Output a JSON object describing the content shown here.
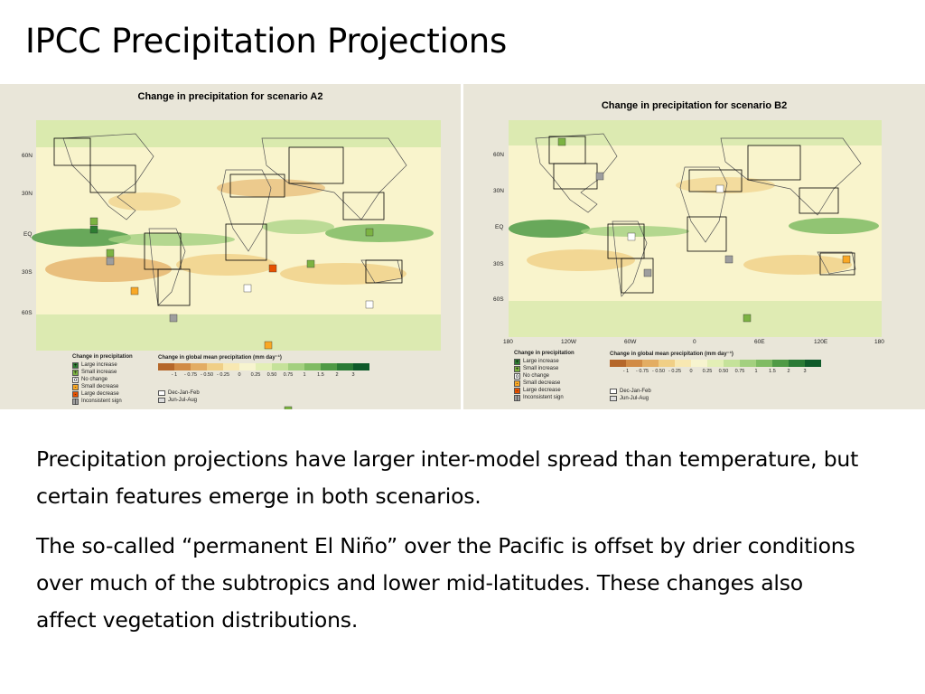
{
  "title": {
    "lead": "IPCC",
    "rest": " Precipitation Projections"
  },
  "figures": {
    "a2": {
      "title": "Change in precipitation for scenario A2",
      "lat_labels": [
        "60N",
        "30N",
        "EQ",
        "30S",
        "60S"
      ]
    },
    "b2": {
      "title": "Change in precipitation for scenario B2",
      "lat_labels": [
        "60N",
        "30N",
        "EQ",
        "30S",
        "60S"
      ],
      "lon_labels": [
        "180",
        "120W",
        "60W",
        "0",
        "60E",
        "120E",
        "180"
      ]
    },
    "legend": {
      "title": "Change in precipitation",
      "items": [
        "Large increase",
        "Small increase",
        "No change",
        "Small decrease",
        "Large decrease",
        "Inconsistent sign"
      ],
      "colors": [
        "#2e7d32",
        "#7cb342",
        "#ffffff",
        "#f9a825",
        "#e65100",
        "#9e9e9e"
      ]
    },
    "scale": {
      "title": "Change in global mean precipitation (mm day⁻¹)",
      "ticks": [
        "- 1",
        "- 0.75",
        "- 0.50",
        "- 0.25",
        "0",
        "0.25",
        "0.50",
        "0.75",
        "1",
        "1.5",
        "2",
        "3"
      ],
      "colors": [
        "#b5672a",
        "#d18b45",
        "#e3ad63",
        "#f0cf86",
        "#f8e8b2",
        "#f7f4cf",
        "#e3efb6",
        "#c5e29a",
        "#a3d07f",
        "#7fbb63",
        "#4f9a45",
        "#2a7a35",
        "#0f5a2a"
      ]
    },
    "seasons": [
      "Dec-Jan-Feb",
      "Jun-Jul-Aug"
    ]
  },
  "body": {
    "p1": "Precipitation projections have larger inter-model spread than temperature, but certain features emerge in both scenarios.",
    "p2": "The so-called “permanent El Niño” over the Pacific is offset by drier conditions over much of the subtropics and lower mid-latitudes.  These changes also affect vegetation distributions."
  }
}
